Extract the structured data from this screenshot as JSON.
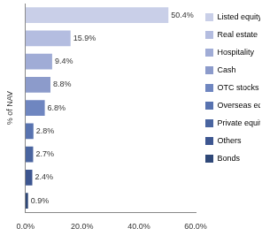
{
  "chart_data": {
    "type": "bar",
    "orientation": "horizontal",
    "ylabel": "% of NAV",
    "categories": [
      "Listed equity",
      "Real estate",
      "Hospitality",
      "Cash",
      "OTC stocks",
      "Overseas equity",
      "Private equity",
      "Others",
      "Bonds"
    ],
    "values": [
      50.4,
      15.9,
      9.4,
      8.8,
      6.8,
      2.8,
      2.7,
      2.4,
      0.9
    ],
    "value_labels": [
      "50.4%",
      "15.9%",
      "9.4%",
      "8.8%",
      "6.8%",
      "2.8%",
      "2.7%",
      "2.4%",
      "0.9%"
    ],
    "colors": [
      "#c9cfe8",
      "#b4bde0",
      "#a0acd6",
      "#8c9bcb",
      "#6f86c0",
      "#5873b0",
      "#4a65a0",
      "#3d5690",
      "#2f4878"
    ],
    "xlim": [
      0,
      60
    ],
    "xticks": [
      {
        "value": 0,
        "label": "0.0%"
      },
      {
        "value": 20,
        "label": "20.0%"
      },
      {
        "value": 40,
        "label": "40.0%"
      },
      {
        "value": 60,
        "label": "60.0%"
      }
    ],
    "grid": false,
    "legend": "right",
    "data_labels": true,
    "tick_labels": "x"
  }
}
